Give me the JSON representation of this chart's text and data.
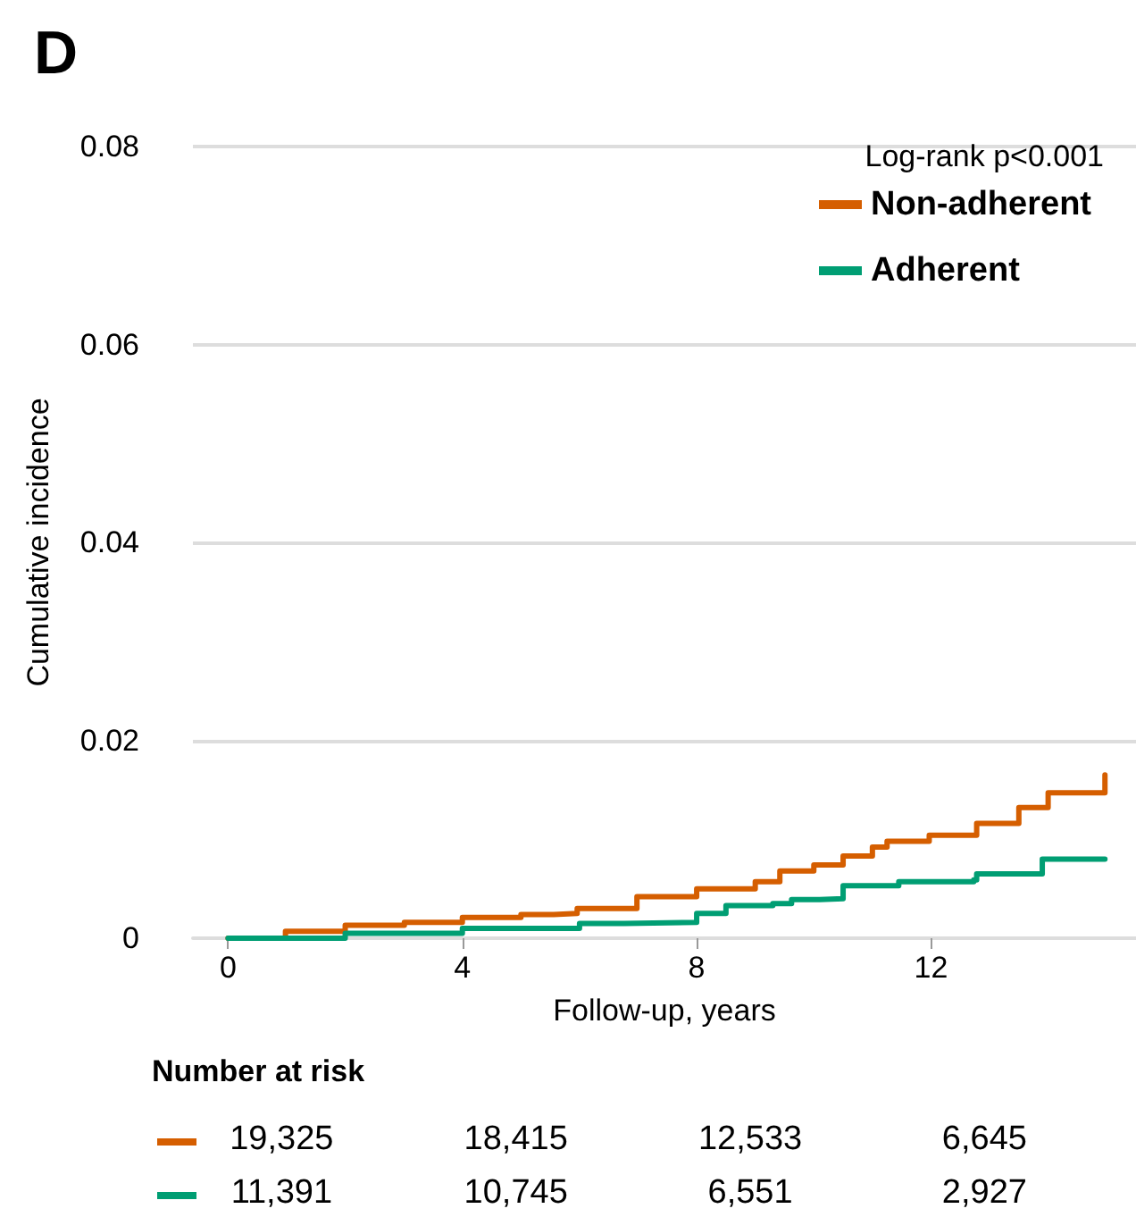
{
  "chart_data": {
    "type": "step",
    "title": "D",
    "xlabel": "Follow-up, years",
    "ylabel": "Cumulative incidence",
    "annotations": [
      "Log-rank p<0.001",
      "Number at risk",
      "19,325",
      "18,415",
      "12,533",
      "6,645",
      "11,391",
      "10,745",
      "6,551",
      "2,927"
    ],
    "series": [
      {
        "name": "Non-adherent",
        "color": "#d55e00",
        "x": [
          0,
          0.98,
          2.0,
          3.01,
          4.0,
          5.0,
          5.56,
          5.96,
          6.98,
          8.0,
          9.0,
          9.42,
          10.0,
          10.5,
          11.0,
          11.25,
          11.97,
          12.48,
          12.78,
          13.5,
          14.0,
          14.97
        ],
        "values": [
          0,
          0.0007,
          0.0013,
          0.0016,
          0.0021,
          0.0024,
          0.0025,
          0.003,
          0.0042,
          0.005,
          0.0057,
          0.0068,
          0.0074,
          0.0083,
          0.0092,
          0.0098,
          0.0104,
          0.0104,
          0.0116,
          0.0132,
          0.0147,
          0.0165
        ]
      },
      {
        "name": "Adherent",
        "color": "#009e73",
        "x": [
          0,
          2.0,
          4.0,
          6.0,
          6.76,
          8.0,
          8.5,
          9.3,
          9.62,
          10.1,
          10.5,
          11.45,
          12.73,
          12.78,
          13.5,
          13.9,
          14.97
        ],
        "values": [
          0,
          0.0005,
          0.001,
          0.0015,
          0.0016,
          0.0025,
          0.0033,
          0.0035,
          0.0039,
          0.004,
          0.0053,
          0.0057,
          0.0059,
          0.0065,
          0.0065,
          0.008,
          0.008
        ]
      }
    ],
    "xlim": [
      -0.6,
      15.5
    ],
    "xticks": [
      0,
      4,
      8,
      12
    ],
    "ylim": [
      0,
      0.08
    ],
    "yticks": [
      0,
      0.02,
      0.04,
      0.06,
      0.08
    ],
    "grid": "y",
    "legend": "top right",
    "marker": "none",
    "line_style": "solid"
  }
}
